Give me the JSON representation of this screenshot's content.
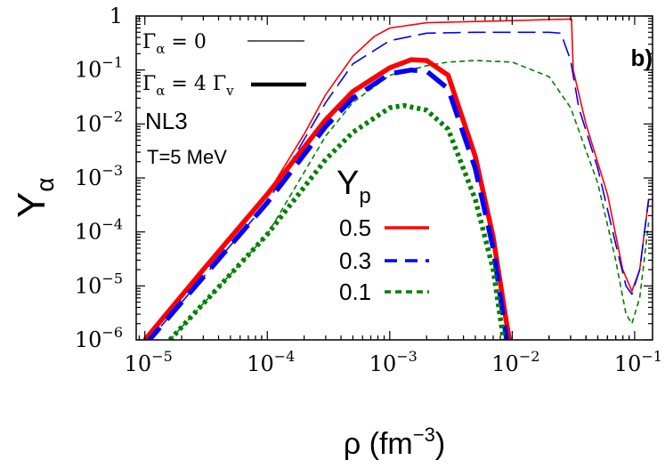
{
  "chart_data": {
    "type": "line",
    "panel_label": "b)",
    "xlabel": "ρ (fm",
    "xlabel_exp": "−3",
    "xlabel_close": ")",
    "ylabel": "Y",
    "ylabel_sub": "α",
    "x_scale": "log",
    "y_scale": "log",
    "xlim": [
      8.5e-06,
      0.14
    ],
    "ylim": [
      1e-06,
      1
    ],
    "grid": false,
    "x_ticks": [
      {
        "base": "10",
        "exp": "−5",
        "value": 1e-05
      },
      {
        "base": "10",
        "exp": "−4",
        "value": 0.0001
      },
      {
        "base": "10",
        "exp": "−3",
        "value": 0.001
      },
      {
        "base": "10",
        "exp": "−2",
        "value": 0.01
      },
      {
        "base": "10",
        "exp": "−1",
        "value": 0.1
      }
    ],
    "y_ticks": [
      {
        "base": "1",
        "exp": "",
        "value": 1
      },
      {
        "base": "10",
        "exp": "−1",
        "value": 0.1
      },
      {
        "base": "10",
        "exp": "−2",
        "value": 0.01
      },
      {
        "base": "10",
        "exp": "−3",
        "value": 0.001
      },
      {
        "base": "10",
        "exp": "−4",
        "value": 0.0001
      },
      {
        "base": "10",
        "exp": "−5",
        "value": 1e-05
      },
      {
        "base": "10",
        "exp": "−6",
        "value": 1e-06
      }
    ],
    "style_legend": [
      {
        "text": "Γ",
        "sub": "α",
        "rest": " = 0",
        "extra": "",
        "extra_sub": "",
        "line": "thin"
      },
      {
        "text": "Γ",
        "sub": "α",
        "rest": " = 4 ",
        "extra": "Γ",
        "extra_sub": "v",
        "line": "thick"
      }
    ],
    "annotations": {
      "model": "NL3",
      "temperature": "T=5 MeV"
    },
    "color_legend_title": "Y",
    "color_legend_title_sub": "p",
    "color_legend": [
      {
        "label": "0.5",
        "color": "#ff0000",
        "dash": "solid"
      },
      {
        "label": "0.3",
        "color": "#0000ff",
        "dash": "dashed"
      },
      {
        "label": "0.1",
        "color": "#008000",
        "dash": "dotted"
      }
    ],
    "series": [
      {
        "yp": "0.5",
        "gamma": "0",
        "color": "#ff0000",
        "dash": "solid",
        "width": "thin",
        "points": [
          [
            1e-05,
            1e-06
          ],
          [
            3e-05,
            2e-05
          ],
          [
            0.0001,
            0.0005
          ],
          [
            0.0002,
            0.0065
          ],
          [
            0.0003,
            0.035
          ],
          [
            0.0005,
            0.18
          ],
          [
            0.00075,
            0.42
          ],
          [
            0.001,
            0.6
          ],
          [
            0.002,
            0.75
          ],
          [
            0.005,
            0.79
          ],
          [
            0.01,
            0.82
          ],
          [
            0.02,
            0.86
          ],
          [
            0.03,
            0.88
          ],
          [
            0.0305,
            0.88
          ],
          [
            0.0315,
            0.1
          ],
          [
            0.04,
            0.01
          ],
          [
            0.06,
            0.0005
          ],
          [
            0.08,
            2e-05
          ],
          [
            0.095,
            8e-06
          ],
          [
            0.11,
            2e-05
          ],
          [
            0.13,
            0.0004
          ]
        ]
      },
      {
        "yp": "0.3",
        "gamma": "0",
        "color": "#0000ff",
        "dash": "dashed",
        "width": "thin",
        "points": [
          [
            1e-05,
            8e-07
          ],
          [
            0.0001,
            0.00035
          ],
          [
            0.0003,
            0.025
          ],
          [
            0.0005,
            0.13
          ],
          [
            0.001,
            0.35
          ],
          [
            0.002,
            0.48
          ],
          [
            0.005,
            0.5
          ],
          [
            0.01,
            0.5
          ],
          [
            0.02,
            0.5
          ],
          [
            0.025,
            0.48
          ],
          [
            0.03,
            0.15
          ],
          [
            0.035,
            0.02
          ],
          [
            0.05,
            0.0015
          ],
          [
            0.07,
            6e-05
          ],
          [
            0.085,
            1e-05
          ],
          [
            0.095,
            7e-06
          ],
          [
            0.11,
            2e-05
          ],
          [
            0.13,
            0.0004
          ]
        ]
      },
      {
        "yp": "0.1",
        "gamma": "0",
        "color": "#008000",
        "dash": "dotted",
        "width": "thin",
        "points": [
          [
            1.6e-05,
            1e-06
          ],
          [
            0.0001,
            9e-05
          ],
          [
            0.0003,
            0.006
          ],
          [
            0.0005,
            0.025
          ],
          [
            0.001,
            0.08
          ],
          [
            0.002,
            0.12
          ],
          [
            0.003,
            0.14
          ],
          [
            0.005,
            0.15
          ],
          [
            0.01,
            0.14
          ],
          [
            0.02,
            0.075
          ],
          [
            0.03,
            0.02
          ],
          [
            0.05,
            0.0008
          ],
          [
            0.07,
            3e-05
          ],
          [
            0.085,
            3e-06
          ],
          [
            0.095,
            2e-06
          ],
          [
            0.11,
            6e-06
          ],
          [
            0.13,
            0.00015
          ]
        ]
      },
      {
        "yp": "0.5",
        "gamma": "4 Γv",
        "color": "#ff0000",
        "dash": "solid",
        "width": "thick",
        "points": [
          [
            1e-05,
            1e-06
          ],
          [
            3e-05,
            2e-05
          ],
          [
            0.0001,
            0.0005
          ],
          [
            0.0003,
            0.012
          ],
          [
            0.0005,
            0.04
          ],
          [
            0.001,
            0.11
          ],
          [
            0.0015,
            0.155
          ],
          [
            0.002,
            0.15
          ],
          [
            0.003,
            0.08
          ],
          [
            0.005,
            0.0025
          ],
          [
            0.007,
            8e-05
          ],
          [
            0.009,
            2e-06
          ],
          [
            0.0095,
            1e-06
          ]
        ]
      },
      {
        "yp": "0.3",
        "gamma": "4 Γv",
        "color": "#0000ff",
        "dash": "dashed",
        "width": "thick",
        "points": [
          [
            1e-05,
            8e-07
          ],
          [
            0.0001,
            0.00035
          ],
          [
            0.0003,
            0.009
          ],
          [
            0.0005,
            0.03
          ],
          [
            0.001,
            0.085
          ],
          [
            0.0015,
            0.1
          ],
          [
            0.002,
            0.095
          ],
          [
            0.003,
            0.045
          ],
          [
            0.005,
            0.0015
          ],
          [
            0.007,
            5e-05
          ],
          [
            0.009,
            1e-06
          ]
        ]
      },
      {
        "yp": "0.1",
        "gamma": "4 Γv",
        "color": "#008000",
        "dash": "dotted",
        "width": "thick",
        "points": [
          [
            1.6e-05,
            1e-06
          ],
          [
            0.0001,
            9e-05
          ],
          [
            0.0003,
            0.0022
          ],
          [
            0.0005,
            0.007
          ],
          [
            0.001,
            0.02
          ],
          [
            0.0013,
            0.022
          ],
          [
            0.002,
            0.018
          ],
          [
            0.003,
            0.008
          ],
          [
            0.005,
            0.0004
          ],
          [
            0.007,
            2e-05
          ],
          [
            0.0085,
            1e-06
          ]
        ]
      }
    ]
  }
}
